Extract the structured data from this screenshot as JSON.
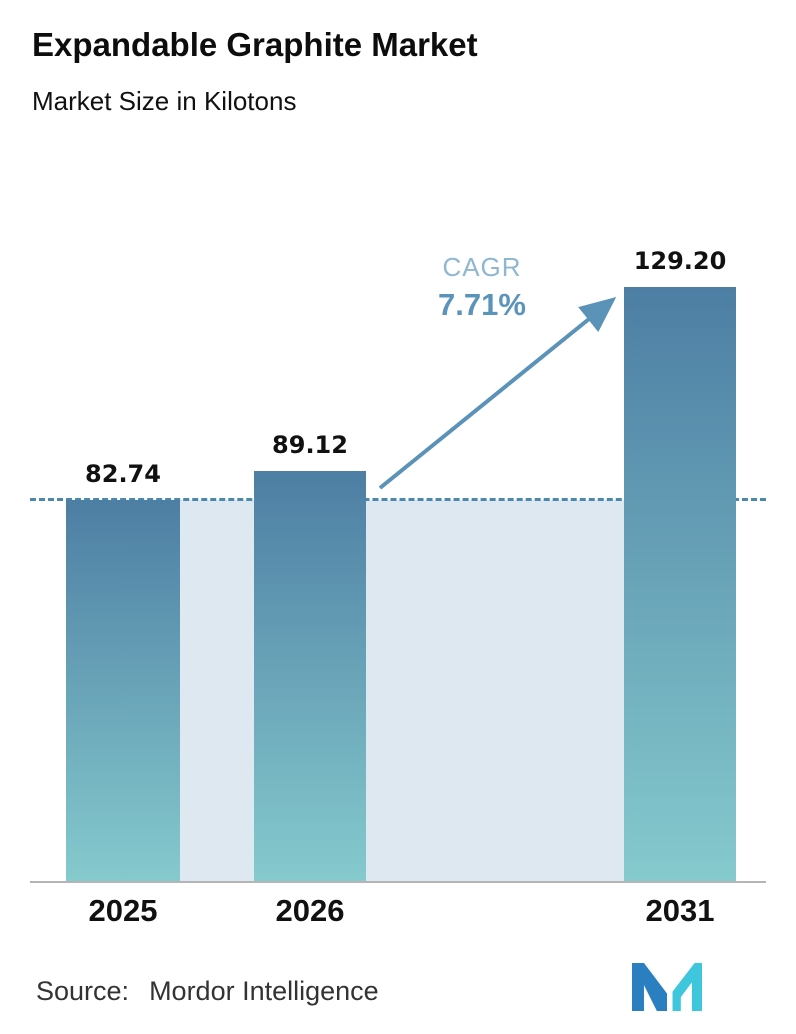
{
  "header": {
    "title": "Expandable Graphite Market",
    "subtitle": "Market Size in Kilotons"
  },
  "chart_data": {
    "type": "bar",
    "categories": [
      "2025",
      "2026",
      "2031"
    ],
    "values": [
      82.74,
      89.12,
      129.2
    ],
    "title": "Expandable Graphite Market",
    "subtitle": "Market Size in Kilotons",
    "xlabel": "",
    "ylabel": "Market Size in Kilotons",
    "ylim": [
      0,
      140
    ],
    "grid": false,
    "legend": false,
    "reference_line": {
      "value": 82.74,
      "style": "dashed"
    },
    "annotations": {
      "cagr_label": "CAGR",
      "cagr_value": "7.71%",
      "arrow": "from 2026 bar top to 2031 bar top"
    },
    "colors": {
      "bar_top": "#4d7ea3",
      "bar_bottom": "#85cacd",
      "band": "#dde8f0",
      "dashed_line": "#4a88ae",
      "arrow": "#5b92b8",
      "cagr_label_color": "#8fb7d2",
      "cagr_value_color": "#5b94ba",
      "axis_line": "#b5b5b5"
    }
  },
  "footer": {
    "source_label": "Source:",
    "source_value": "Mordor Intelligence",
    "logo": "mordor-intelligence-logo",
    "logo_colors": {
      "dark": "#2a7fc1",
      "teal": "#3ec6dd"
    }
  }
}
